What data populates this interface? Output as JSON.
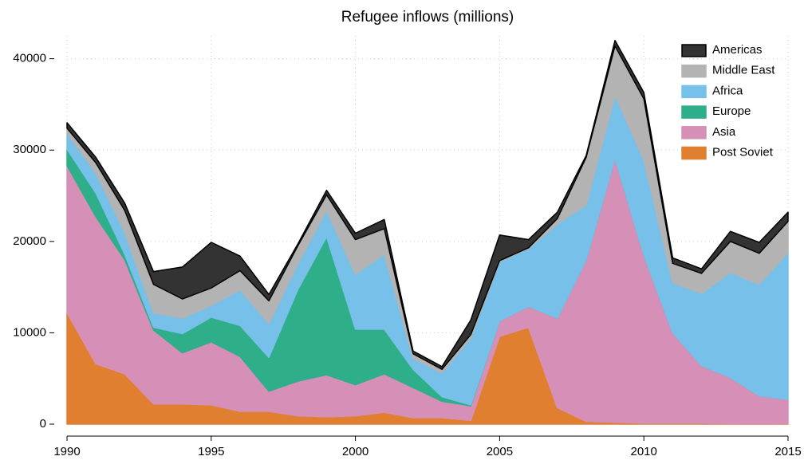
{
  "chart_data": {
    "type": "stacked_area",
    "title": "Refugee inflows (millions)",
    "x": [
      1990,
      1991,
      1992,
      1993,
      1994,
      1995,
      1996,
      1997,
      1998,
      1999,
      2000,
      2001,
      2002,
      2003,
      2004,
      2005,
      2006,
      2007,
      2008,
      2009,
      2010,
      2011,
      2012,
      2013,
      2014,
      2015
    ],
    "series": [
      {
        "name": "Post Soviet",
        "color": "#e07f30",
        "values": [
          12200,
          6600,
          5500,
          2200,
          2200,
          2100,
          1400,
          1400,
          900,
          800,
          900,
          1300,
          700,
          700,
          400,
          9600,
          10600,
          1800,
          300,
          200,
          100,
          100,
          100,
          50,
          50,
          50
        ]
      },
      {
        "name": "Asia",
        "color": "#d690b8",
        "values": [
          16100,
          16100,
          12500,
          8100,
          5600,
          6900,
          6000,
          2200,
          3800,
          4600,
          3400,
          4200,
          3300,
          1800,
          1600,
          1700,
          2300,
          9800,
          17700,
          28900,
          18400,
          9900,
          6300,
          5050,
          3050,
          2650
        ]
      },
      {
        "name": "Europe",
        "color": "#2fae8a",
        "values": [
          1800,
          2600,
          600,
          300,
          2100,
          2700,
          3400,
          3700,
          10000,
          15100,
          6100,
          4900,
          2000,
          500,
          100,
          0,
          0,
          0,
          0,
          0,
          0,
          0,
          0,
          0,
          0,
          0
        ]
      },
      {
        "name": "Africa",
        "color": "#76c0ea",
        "values": [
          1700,
          2200,
          2400,
          1600,
          1700,
          1300,
          3900,
          3700,
          2800,
          2900,
          6000,
          8200,
          1200,
          2600,
          7300,
          6500,
          6300,
          10300,
          6000,
          6900,
          10400,
          5500,
          7900,
          11500,
          12200,
          16100
        ]
      },
      {
        "name": "Middle East",
        "color": "#b3b3b3",
        "values": [
          600,
          1100,
          2400,
          3100,
          2100,
          1900,
          2100,
          2500,
          2000,
          1700,
          3800,
          2800,
          500,
          400,
          400,
          100,
          100,
          600,
          5200,
          5400,
          6700,
          2100,
          2200,
          3400,
          3400,
          3400
        ]
      },
      {
        "name": "Americas",
        "color": "#333333",
        "values": [
          600,
          600,
          800,
          1400,
          3500,
          5000,
          1600,
          700,
          200,
          500,
          700,
          1000,
          300,
          300,
          1600,
          2800,
          900,
          700,
          200,
          600,
          700,
          600,
          500,
          1100,
          1200,
          1000
        ]
      }
    ],
    "xlim": [
      1990,
      2015
    ],
    "xticks": [
      1990,
      1995,
      2000,
      2005,
      2010,
      2015
    ],
    "ylim": [
      0,
      42500
    ],
    "yticks": [
      0,
      10000,
      20000,
      30000,
      40000
    ],
    "grid": true
  }
}
